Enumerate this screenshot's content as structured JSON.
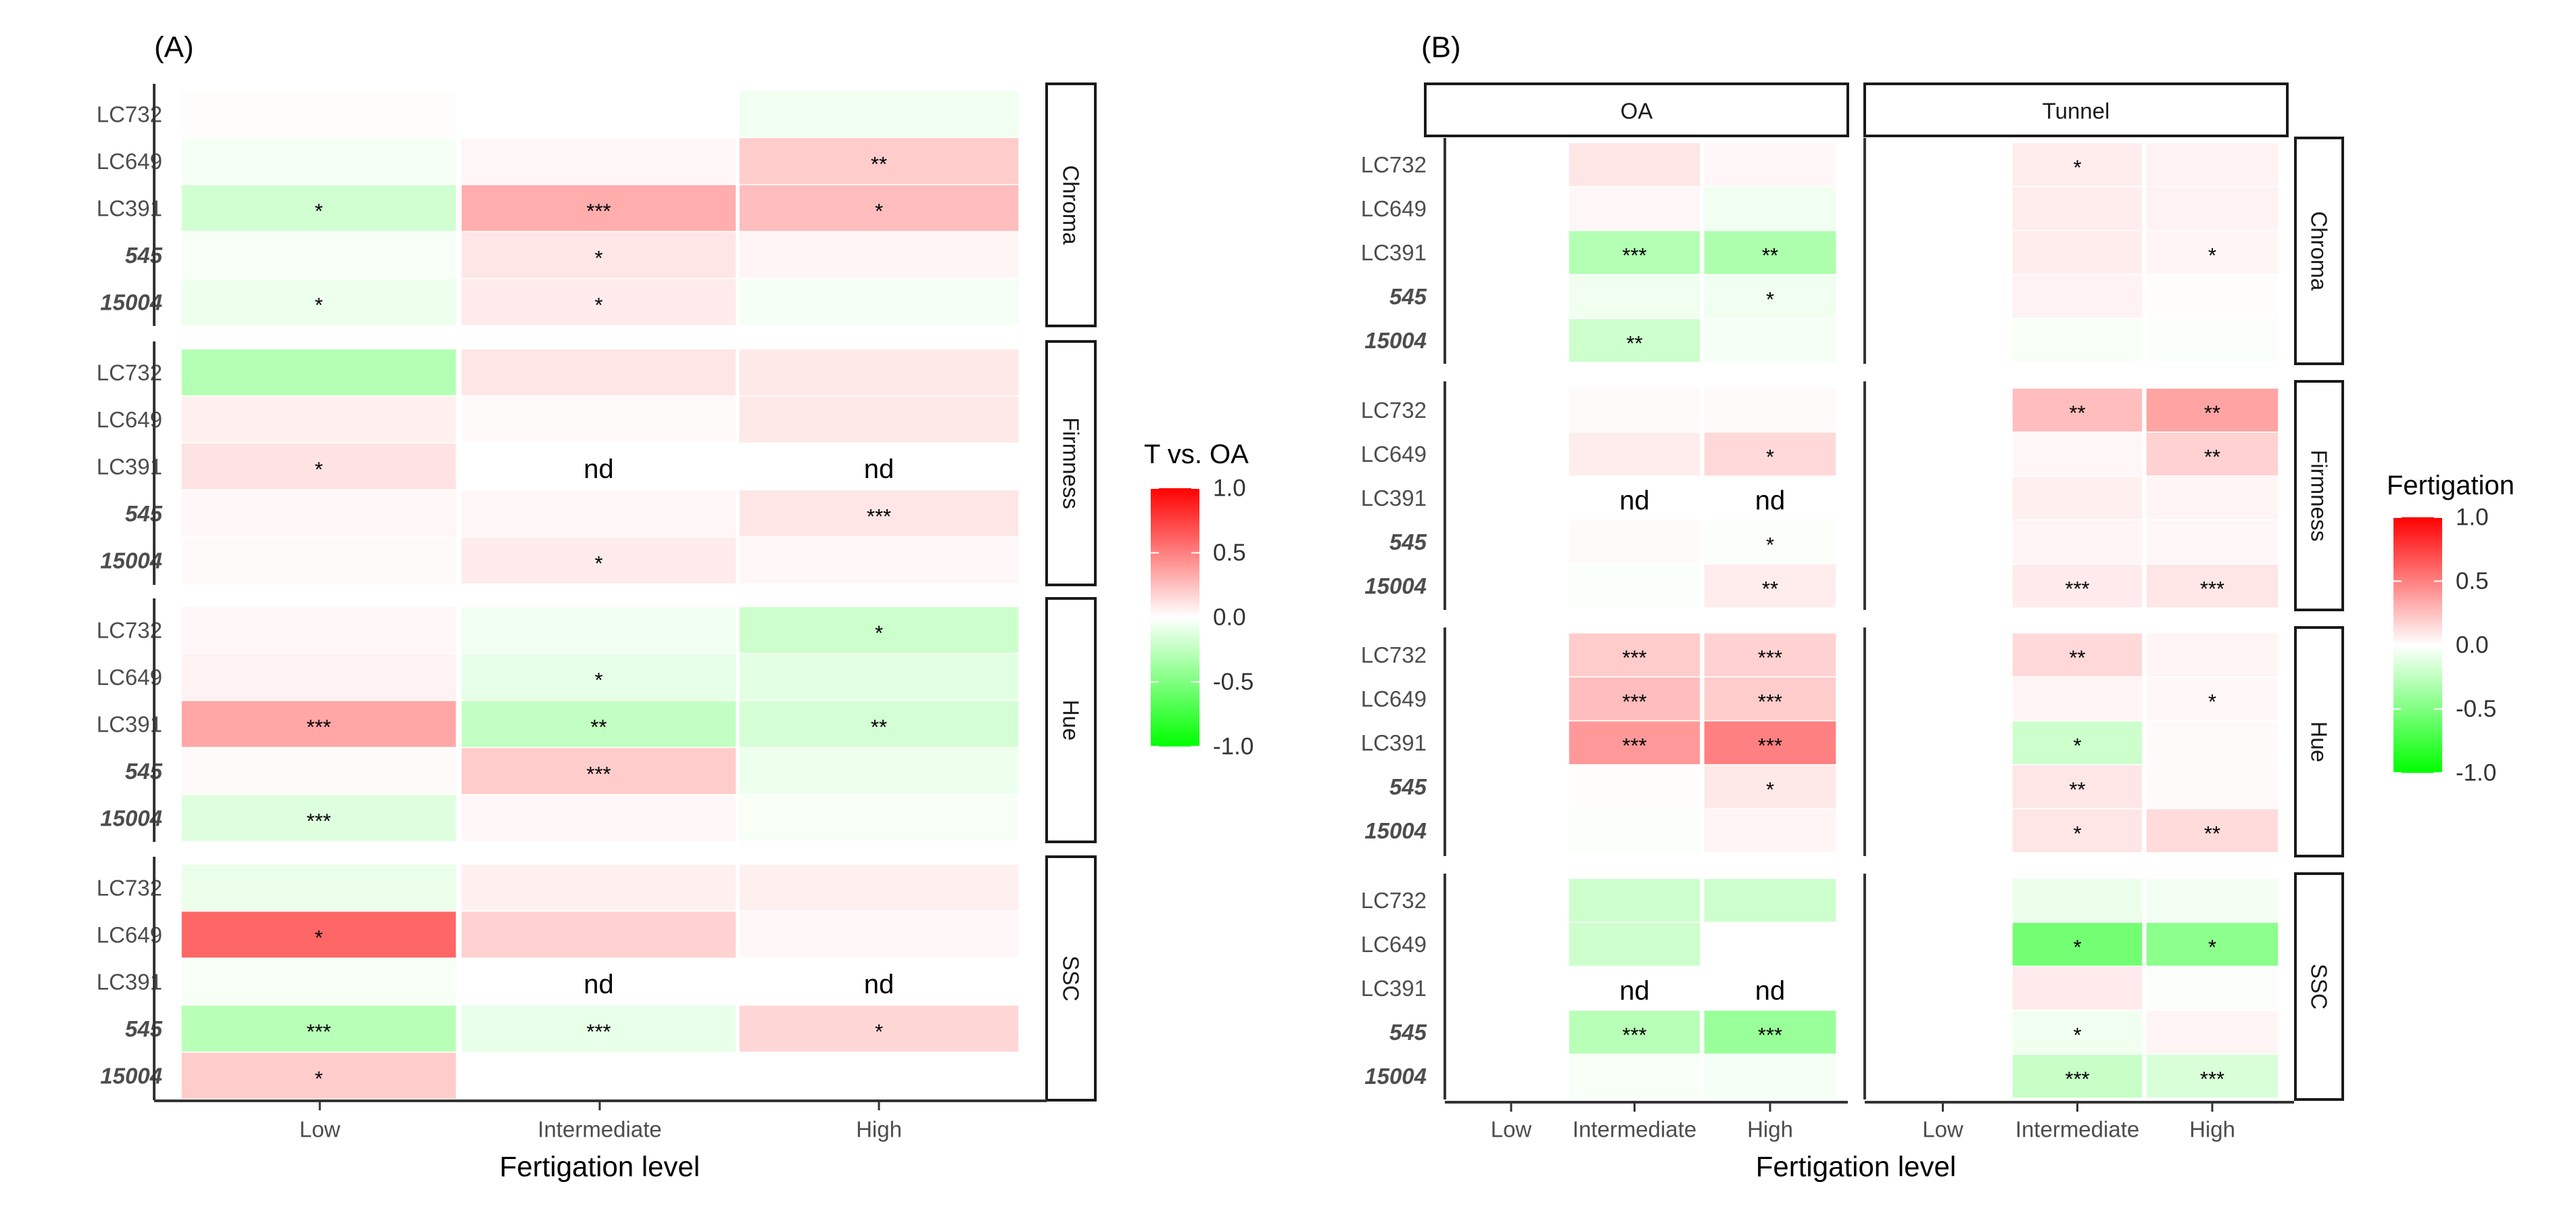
{
  "colors": {
    "neg": "#00ff00",
    "zero": "#ffffff",
    "pos": "#ff0000",
    "axis": "#333333",
    "text": "#4d4d4d"
  },
  "chart_data": [
    {
      "type": "heatmap",
      "panel_label": "(A)",
      "xlabel": "Fertigation level",
      "categories": [
        "Low",
        "Intermediate",
        "High"
      ],
      "rows": [
        "LC732",
        "LC649",
        "LC391",
        "545",
        "15004"
      ],
      "italic_rows": [
        "545",
        "15004"
      ],
      "facets": [
        "Chroma",
        "Firmness",
        "Hue",
        "SSC"
      ],
      "legend": {
        "title": "T vs. OA",
        "ticks": [
          "1.0",
          "0.5",
          "0.0",
          "-0.5",
          "-1.0"
        ],
        "range": [
          -1,
          1
        ]
      },
      "cells": {
        "Chroma": {
          "LC732": [
            {
              "v": 0.01,
              "l": ""
            },
            {
              "v": 0.0,
              "l": ""
            },
            {
              "v": -0.06,
              "l": ""
            }
          ],
          "LC649": [
            {
              "v": -0.04,
              "l": ""
            },
            {
              "v": 0.03,
              "l": ""
            },
            {
              "v": 0.2,
              "l": "**"
            }
          ],
          "LC391": [
            {
              "v": -0.18,
              "l": "*"
            },
            {
              "v": 0.32,
              "l": "***"
            },
            {
              "v": 0.26,
              "l": "*"
            }
          ],
          "545": [
            {
              "v": -0.03,
              "l": ""
            },
            {
              "v": 0.1,
              "l": "*"
            },
            {
              "v": 0.04,
              "l": ""
            }
          ],
          "15004": [
            {
              "v": -0.07,
              "l": "*"
            },
            {
              "v": 0.08,
              "l": "*"
            },
            {
              "v": -0.04,
              "l": ""
            }
          ]
        },
        "Firmness": {
          "LC732": [
            {
              "v": -0.3,
              "l": ""
            },
            {
              "v": 0.1,
              "l": ""
            },
            {
              "v": 0.09,
              "l": ""
            }
          ],
          "LC649": [
            {
              "v": 0.06,
              "l": ""
            },
            {
              "v": 0.02,
              "l": ""
            },
            {
              "v": 0.09,
              "l": ""
            }
          ],
          "LC391": [
            {
              "v": 0.11,
              "l": "*"
            },
            {
              "v": null,
              "l": "nd"
            },
            {
              "v": null,
              "l": "nd"
            }
          ],
          "545": [
            {
              "v": 0.03,
              "l": ""
            },
            {
              "v": 0.03,
              "l": ""
            },
            {
              "v": 0.1,
              "l": "***"
            }
          ],
          "15004": [
            {
              "v": 0.02,
              "l": ""
            },
            {
              "v": 0.08,
              "l": "*"
            },
            {
              "v": 0.03,
              "l": ""
            }
          ]
        },
        "Hue": {
          "LC732": [
            {
              "v": 0.03,
              "l": ""
            },
            {
              "v": -0.06,
              "l": ""
            },
            {
              "v": -0.2,
              "l": "*"
            }
          ],
          "LC649": [
            {
              "v": 0.05,
              "l": ""
            },
            {
              "v": -0.1,
              "l": "*"
            },
            {
              "v": -0.11,
              "l": ""
            }
          ],
          "LC391": [
            {
              "v": 0.35,
              "l": "***"
            },
            {
              "v": -0.24,
              "l": "**"
            },
            {
              "v": -0.17,
              "l": "**"
            }
          ],
          "545": [
            {
              "v": 0.02,
              "l": ""
            },
            {
              "v": 0.2,
              "l": "***"
            },
            {
              "v": -0.07,
              "l": ""
            }
          ],
          "15004": [
            {
              "v": -0.13,
              "l": "***"
            },
            {
              "v": 0.03,
              "l": ""
            },
            {
              "v": -0.03,
              "l": ""
            }
          ]
        },
        "SSC": {
          "LC732": [
            {
              "v": -0.08,
              "l": ""
            },
            {
              "v": 0.06,
              "l": ""
            },
            {
              "v": 0.06,
              "l": ""
            }
          ],
          "LC649": [
            {
              "v": 0.6,
              "l": "*"
            },
            {
              "v": 0.18,
              "l": ""
            },
            {
              "v": 0.03,
              "l": ""
            }
          ],
          "LC391": [
            {
              "v": -0.03,
              "l": ""
            },
            {
              "v": null,
              "l": "nd"
            },
            {
              "v": null,
              "l": "nd"
            }
          ],
          "545": [
            {
              "v": -0.28,
              "l": "***"
            },
            {
              "v": -0.09,
              "l": "***"
            },
            {
              "v": 0.16,
              "l": "*"
            }
          ],
          "15004": [
            {
              "v": 0.2,
              "l": "*"
            },
            {
              "v": null,
              "l": ""
            },
            {
              "v": null,
              "l": ""
            }
          ]
        }
      }
    },
    {
      "type": "heatmap",
      "panel_label": "(B)",
      "xlabel": "Fertigation level",
      "categories": [
        "Low",
        "Intermediate",
        "High"
      ],
      "rows": [
        "LC732",
        "LC649",
        "LC391",
        "545",
        "15004"
      ],
      "italic_rows": [
        "545",
        "15004"
      ],
      "col_facets": [
        "OA",
        "Tunnel"
      ],
      "facets": [
        "Chroma",
        "Firmness",
        "Hue",
        "SSC"
      ],
      "legend": {
        "title": "Fertigation",
        "ticks": [
          "1.0",
          "0.5",
          "0.0",
          "-0.5",
          "-1.0"
        ],
        "range": [
          -1,
          1
        ]
      },
      "cells": {
        "OA": {
          "Chroma": {
            "LC732": [
              {
                "v": null,
                "l": ""
              },
              {
                "v": 0.1,
                "l": ""
              },
              {
                "v": 0.03,
                "l": ""
              }
            ],
            "LC649": [
              {
                "v": null,
                "l": ""
              },
              {
                "v": 0.03,
                "l": ""
              },
              {
                "v": -0.06,
                "l": ""
              }
            ],
            "LC391": [
              {
                "v": null,
                "l": ""
              },
              {
                "v": -0.3,
                "l": "***"
              },
              {
                "v": -0.32,
                "l": "**"
              }
            ],
            "545": [
              {
                "v": null,
                "l": ""
              },
              {
                "v": -0.06,
                "l": ""
              },
              {
                "v": -0.06,
                "l": "*"
              }
            ],
            "15004": [
              {
                "v": null,
                "l": ""
              },
              {
                "v": -0.2,
                "l": "**"
              },
              {
                "v": -0.04,
                "l": ""
              }
            ]
          },
          "Firmness": {
            "LC732": [
              {
                "v": null,
                "l": ""
              },
              {
                "v": 0.02,
                "l": ""
              },
              {
                "v": 0.02,
                "l": ""
              }
            ],
            "LC649": [
              {
                "v": null,
                "l": ""
              },
              {
                "v": 0.07,
                "l": ""
              },
              {
                "v": 0.15,
                "l": "*"
              }
            ],
            "LC391": [
              {
                "v": null,
                "l": ""
              },
              {
                "v": null,
                "l": "nd"
              },
              {
                "v": null,
                "l": "nd"
              }
            ],
            "545": [
              {
                "v": null,
                "l": ""
              },
              {
                "v": 0.02,
                "l": ""
              },
              {
                "v": -0.02,
                "l": "*"
              }
            ],
            "15004": [
              {
                "v": null,
                "l": ""
              },
              {
                "v": -0.02,
                "l": ""
              },
              {
                "v": 0.07,
                "l": "**"
              }
            ]
          },
          "Hue": {
            "LC732": [
              {
                "v": null,
                "l": ""
              },
              {
                "v": 0.2,
                "l": "***"
              },
              {
                "v": 0.18,
                "l": "***"
              }
            ],
            "LC649": [
              {
                "v": null,
                "l": ""
              },
              {
                "v": 0.26,
                "l": "***"
              },
              {
                "v": 0.2,
                "l": "***"
              }
            ],
            "LC391": [
              {
                "v": null,
                "l": ""
              },
              {
                "v": 0.4,
                "l": "***"
              },
              {
                "v": 0.5,
                "l": "***"
              }
            ],
            "545": [
              {
                "v": null,
                "l": ""
              },
              {
                "v": 0.01,
                "l": ""
              },
              {
                "v": 0.09,
                "l": "*"
              }
            ],
            "15004": [
              {
                "v": null,
                "l": ""
              },
              {
                "v": -0.02,
                "l": ""
              },
              {
                "v": 0.04,
                "l": ""
              }
            ]
          },
          "SSC": {
            "LC732": [
              {
                "v": null,
                "l": ""
              },
              {
                "v": -0.2,
                "l": ""
              },
              {
                "v": -0.2,
                "l": ""
              }
            ],
            "LC649": [
              {
                "v": null,
                "l": ""
              },
              {
                "v": -0.2,
                "l": ""
              },
              {
                "v": null,
                "l": ""
              }
            ],
            "LC391": [
              {
                "v": null,
                "l": ""
              },
              {
                "v": null,
                "l": "nd"
              },
              {
                "v": null,
                "l": "nd"
              }
            ],
            "545": [
              {
                "v": null,
                "l": ""
              },
              {
                "v": -0.28,
                "l": "***"
              },
              {
                "v": -0.4,
                "l": "***"
              }
            ],
            "15004": [
              {
                "v": null,
                "l": ""
              },
              {
                "v": -0.03,
                "l": ""
              },
              {
                "v": -0.04,
                "l": ""
              }
            ]
          }
        },
        "Tunnel": {
          "Chroma": {
            "LC732": [
              {
                "v": null,
                "l": ""
              },
              {
                "v": 0.07,
                "l": "*"
              },
              {
                "v": 0.05,
                "l": ""
              }
            ],
            "LC649": [
              {
                "v": null,
                "l": ""
              },
              {
                "v": 0.07,
                "l": ""
              },
              {
                "v": 0.05,
                "l": ""
              }
            ],
            "LC391": [
              {
                "v": null,
                "l": ""
              },
              {
                "v": 0.07,
                "l": ""
              },
              {
                "v": 0.04,
                "l": "*"
              }
            ],
            "545": [
              {
                "v": null,
                "l": ""
              },
              {
                "v": 0.05,
                "l": ""
              },
              {
                "v": 0.01,
                "l": ""
              }
            ],
            "15004": [
              {
                "v": null,
                "l": ""
              },
              {
                "v": -0.03,
                "l": ""
              },
              {
                "v": -0.02,
                "l": ""
              }
            ]
          },
          "Firmness": {
            "LC732": [
              {
                "v": null,
                "l": ""
              },
              {
                "v": 0.26,
                "l": "**"
              },
              {
                "v": 0.36,
                "l": "**"
              }
            ],
            "LC649": [
              {
                "v": null,
                "l": ""
              },
              {
                "v": 0.03,
                "l": ""
              },
              {
                "v": 0.18,
                "l": "**"
              }
            ],
            "LC391": [
              {
                "v": null,
                "l": ""
              },
              {
                "v": 0.06,
                "l": ""
              },
              {
                "v": 0.04,
                "l": ""
              }
            ],
            "545": [
              {
                "v": null,
                "l": ""
              },
              {
                "v": 0.04,
                "l": ""
              },
              {
                "v": 0.03,
                "l": ""
              }
            ],
            "15004": [
              {
                "v": null,
                "l": ""
              },
              {
                "v": 0.08,
                "l": "***"
              },
              {
                "v": 0.1,
                "l": "***"
              }
            ]
          },
          "Hue": {
            "LC732": [
              {
                "v": null,
                "l": ""
              },
              {
                "v": 0.15,
                "l": "**"
              },
              {
                "v": 0.04,
                "l": ""
              }
            ],
            "LC649": [
              {
                "v": null,
                "l": ""
              },
              {
                "v": 0.04,
                "l": ""
              },
              {
                "v": 0.03,
                "l": "*"
              }
            ],
            "LC391": [
              {
                "v": null,
                "l": ""
              },
              {
                "v": -0.2,
                "l": "*"
              },
              {
                "v": 0.02,
                "l": ""
              }
            ],
            "545": [
              {
                "v": null,
                "l": ""
              },
              {
                "v": 0.1,
                "l": "**"
              },
              {
                "v": 0.02,
                "l": ""
              }
            ],
            "15004": [
              {
                "v": null,
                "l": ""
              },
              {
                "v": 0.1,
                "l": "*"
              },
              {
                "v": 0.14,
                "l": "**"
              }
            ]
          },
          "SSC": {
            "LC732": [
              {
                "v": null,
                "l": ""
              },
              {
                "v": -0.08,
                "l": ""
              },
              {
                "v": -0.05,
                "l": ""
              }
            ],
            "LC649": [
              {
                "v": null,
                "l": ""
              },
              {
                "v": -0.55,
                "l": "*"
              },
              {
                "v": -0.45,
                "l": "*"
              }
            ],
            "LC391": [
              {
                "v": null,
                "l": ""
              },
              {
                "v": 0.08,
                "l": ""
              },
              {
                "v": -0.02,
                "l": ""
              }
            ],
            "545": [
              {
                "v": null,
                "l": ""
              },
              {
                "v": -0.06,
                "l": "*"
              },
              {
                "v": 0.04,
                "l": ""
              }
            ],
            "15004": [
              {
                "v": null,
                "l": ""
              },
              {
                "v": -0.22,
                "l": "***"
              },
              {
                "v": -0.15,
                "l": "***"
              }
            ]
          }
        }
      }
    }
  ]
}
